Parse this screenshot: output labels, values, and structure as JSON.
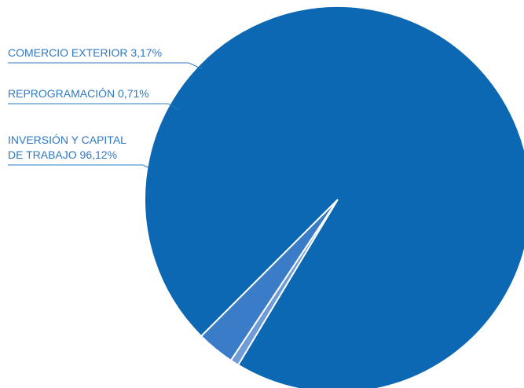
{
  "chart_data": {
    "type": "pie",
    "title": "",
    "slices": [
      {
        "label_lines": [
          "COMERCIO EXTERIOR 3,17%"
        ],
        "name": "COMERCIO EXTERIOR",
        "value": 3.17,
        "color": "#3a7cc7"
      },
      {
        "label_lines": [
          "REPROGRAMACIÓN 0,71%"
        ],
        "name": "REPROGRAMACIÓN",
        "value": 0.71,
        "color": "#6f9bd6"
      },
      {
        "label_lines": [
          "INVERSIÓN Y CAPITAL",
          "DE TRABAJO 96,12%"
        ],
        "name": "INVERSIÓN Y CAPITAL DE TRABAJO",
        "value": 96.12,
        "color": "#0d68b3"
      }
    ],
    "label_color": "#2f78c4",
    "legend": "none"
  }
}
